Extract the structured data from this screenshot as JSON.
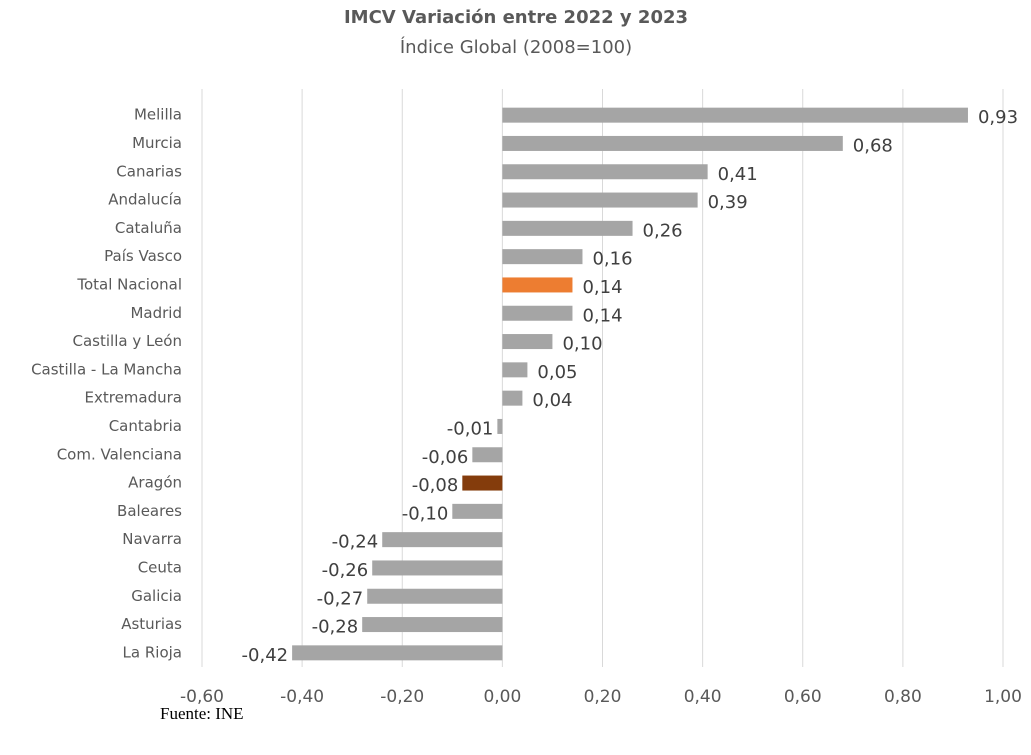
{
  "chart_data": {
    "type": "bar",
    "orientation": "horizontal",
    "title": "IMCV Variación entre 2022 y 2023",
    "subtitle": "Índice Global (2008=100)",
    "source": "Fuente: INE",
    "categories": [
      "Melilla",
      "Murcia",
      "Canarias",
      "Andalucía",
      "Cataluña",
      "País Vasco",
      "Total Nacional",
      "Madrid",
      "Castilla y León",
      "Castilla - La Mancha",
      "Extremadura",
      "Cantabria",
      "Com. Valenciana",
      "Aragón",
      "Baleares",
      "Navarra",
      "Ceuta",
      "Galicia",
      "Asturias",
      "La Rioja"
    ],
    "values": [
      0.93,
      0.68,
      0.41,
      0.39,
      0.26,
      0.16,
      0.14,
      0.14,
      0.1,
      0.05,
      0.04,
      -0.01,
      -0.06,
      -0.08,
      -0.1,
      -0.24,
      -0.26,
      -0.27,
      -0.28,
      -0.42
    ],
    "value_labels": [
      "0,93",
      "0,68",
      "0,41",
      "0,39",
      "0,26",
      "0,16",
      "0,14",
      "0,14",
      "0,10",
      "0,05",
      "0,04",
      "-0,01",
      "-0,06",
      "-0,08",
      "-0,10",
      "-0,24",
      "-0,26",
      "-0,27",
      "-0,28",
      "-0,42"
    ],
    "colors": [
      "#a5a5a5",
      "#a5a5a5",
      "#a5a5a5",
      "#a5a5a5",
      "#a5a5a5",
      "#a5a5a5",
      "#ed7d31",
      "#a5a5a5",
      "#a5a5a5",
      "#a5a5a5",
      "#a5a5a5",
      "#a5a5a5",
      "#a5a5a5",
      "#843c0c",
      "#a5a5a5",
      "#a5a5a5",
      "#a5a5a5",
      "#a5a5a5",
      "#a5a5a5",
      "#a5a5a5"
    ],
    "xlim": [
      -0.6,
      1.0
    ],
    "xticks": [
      {
        "value": -0.6,
        "label": "-0,60"
      },
      {
        "value": -0.4,
        "label": "-0,40"
      },
      {
        "value": -0.2,
        "label": "-0,20"
      },
      {
        "value": 0,
        "label": "0,00"
      },
      {
        "value": 0.2,
        "label": "0,20"
      },
      {
        "value": 0.4,
        "label": "0,40"
      },
      {
        "value": 0.6,
        "label": "0,60"
      },
      {
        "value": 0.8,
        "label": "0,80"
      },
      {
        "value": 1.0,
        "label": "1,00"
      }
    ],
    "grid": true
  }
}
